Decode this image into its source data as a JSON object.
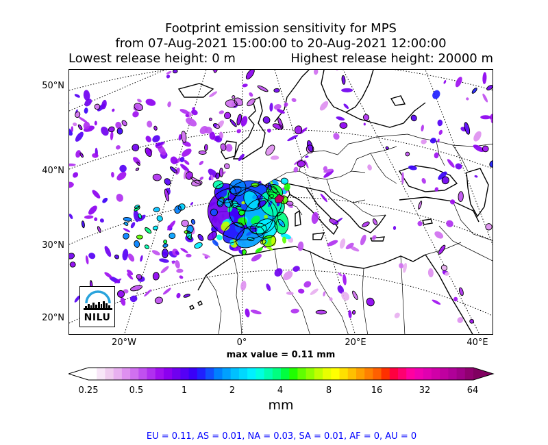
{
  "title": {
    "line1": "Footprint emission sensitivity for MPS",
    "line2": "from 07-Aug-2021 15:00:00 to 20-Aug-2021 12:00:00",
    "lowest_release": "Lowest release height: 0 m",
    "highest_release": "Highest release height: 20000 m"
  },
  "map": {
    "lat_labels": [
      "50°N",
      "40°N",
      "30°N",
      "20°N"
    ],
    "lon_labels": [
      "20°W",
      "0°",
      "20°E",
      "40°E"
    ],
    "max_value_text": "max value = 0.11 mm",
    "logo_text": "NILU"
  },
  "colorbar": {
    "tick_labels": [
      "0.25",
      "0.5",
      "1",
      "2",
      "4",
      "8",
      "16",
      "32",
      "64"
    ],
    "unit": "mm",
    "colors": [
      "#ffffff",
      "#f8e6f8",
      "#f0ccf0",
      "#e8b0f0",
      "#de90f0",
      "#d070f0",
      "#c050f0",
      "#b030f0",
      "#a010f0",
      "#8c00f0",
      "#7000f0",
      "#5500f5",
      "#3a00f8",
      "#2020ff",
      "#1050ff",
      "#0080ff",
      "#00a0ff",
      "#00c0ff",
      "#00d8ff",
      "#00f0ff",
      "#00ffe0",
      "#00ffb0",
      "#00ff80",
      "#00ff40",
      "#20ff00",
      "#60ff00",
      "#90ff00",
      "#c0ff00",
      "#e8ff00",
      "#ffff00",
      "#ffe000",
      "#ffc000",
      "#ffa000",
      "#ff8000",
      "#ff6000",
      "#ff3000",
      "#ff0040",
      "#ff0070",
      "#ff00a0",
      "#f000b0",
      "#e000b0",
      "#d000a8",
      "#c000a0",
      "#b00098",
      "#a00088",
      "#900070",
      "#800060"
    ]
  },
  "region_stats": "EU = 0.11,  AS = 0.01,  NA = 0.03,  SA = 0.01,  AF = 0,  AU = 0"
}
